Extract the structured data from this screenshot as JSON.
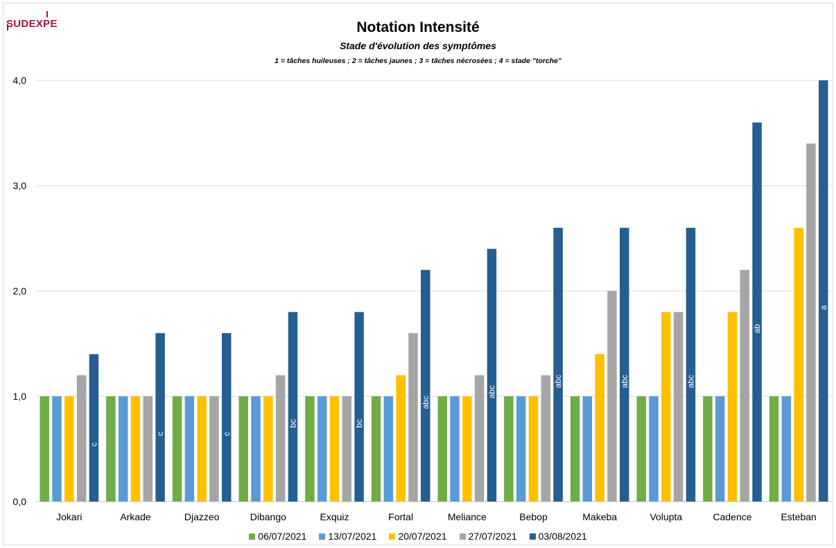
{
  "logo": {
    "text": "SUDEXPE"
  },
  "chart_data": {
    "type": "bar",
    "title": "Notation Intensité",
    "subtitle": "Stade d'évolution des symptômes",
    "subtitle2": "1 = tâches huileuses ; 2 = tâches jaunes ; 3 = tâches nécrosées ; 4 = stade \"torche\"",
    "categories": [
      "Jokari",
      "Arkade",
      "Djazzeo",
      "Dibango",
      "Exquiz",
      "Fortal",
      "Meliance",
      "Bebop",
      "Makeba",
      "Volupta",
      "Cadence",
      "Esteban"
    ],
    "ylim": [
      0,
      4
    ],
    "yticks": [
      "0,0",
      "1,0",
      "2,0",
      "3,0",
      "4,0"
    ],
    "grid": true,
    "legend_position": "bottom",
    "series": [
      {
        "name": "06/07/2021",
        "color": "#70ad47",
        "values": [
          1,
          1,
          1,
          1,
          1,
          1,
          1,
          1,
          1,
          1,
          1,
          1
        ]
      },
      {
        "name": "13/07/2021",
        "color": "#5b9bd5",
        "values": [
          1,
          1,
          1,
          1,
          1,
          1,
          1,
          1,
          1,
          1,
          1,
          1
        ]
      },
      {
        "name": "20/07/2021",
        "color": "#ffc000",
        "values": [
          1,
          1,
          1,
          1,
          1,
          1.2,
          1,
          1,
          1.4,
          1.8,
          1.8,
          2.6
        ]
      },
      {
        "name": "27/07/2021",
        "color": "#a5a5a5",
        "values": [
          1.2,
          1,
          1,
          1.2,
          1,
          1.6,
          1.2,
          1.2,
          2,
          1.8,
          2.2,
          3.4
        ]
      },
      {
        "name": "03/08/2021",
        "color": "#255e91",
        "values": [
          1.4,
          1.6,
          1.6,
          1.8,
          1.8,
          2.2,
          2.4,
          2.6,
          2.6,
          2.6,
          3.6,
          4
        ],
        "labels": [
          "c",
          "c",
          "c",
          "bc",
          "bc",
          "abc",
          "abc",
          "abc",
          "abc",
          "abc",
          "ab",
          "a"
        ]
      }
    ]
  }
}
